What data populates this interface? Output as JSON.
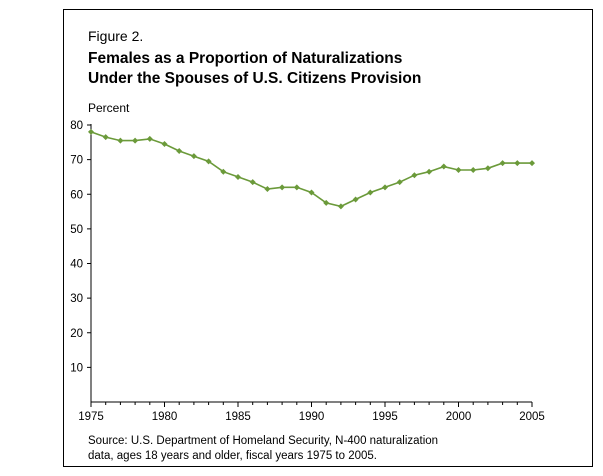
{
  "figure_label": "Figure 2.",
  "title_line1": "Females as a Proportion of Naturalizations",
  "title_line2": "Under the Spouses of U.S. Citizens Provision",
  "y_unit": "Percent",
  "source_line1": "Source: U.S. Department of Homeland Security, N-400 naturalization",
  "source_line2": "data, ages 18 years and older, fiscal years 1975 to 2005.",
  "chart_data": {
    "type": "line",
    "title": "Females as a Proportion of Naturalizations Under the Spouses of U.S. Citizens Provision",
    "xlabel": "",
    "ylabel": "Percent",
    "xlim": [
      1975,
      2005
    ],
    "ylim": [
      0,
      80
    ],
    "x_ticks": [
      "1975",
      "1980",
      "1985",
      "1990",
      "1995",
      "2000",
      "2005"
    ],
    "y_ticks": [
      "10",
      "20",
      "30",
      "40",
      "50",
      "60",
      "70",
      "80"
    ],
    "grid": false,
    "legend": "none",
    "line_color": "#6b9a3a",
    "series": [
      {
        "x": [
          1975,
          1976,
          1977,
          1978,
          1979,
          1980,
          1981,
          1982,
          1983,
          1984,
          1985,
          1986,
          1987,
          1988,
          1989,
          1990,
          1991,
          1992,
          1993,
          1994,
          1995,
          1996,
          1997,
          1998,
          1999,
          2000,
          2001,
          2002,
          2003,
          2004,
          2005
        ],
        "values": [
          78,
          76.5,
          75.5,
          75.5,
          76,
          74.5,
          72.5,
          71,
          69.5,
          66.5,
          65,
          63.5,
          61.5,
          62,
          62,
          60.5,
          57.5,
          56.5,
          58.5,
          60.5,
          62,
          63.5,
          65.5,
          66.5,
          68,
          67,
          67,
          67.5,
          69,
          69,
          69
        ]
      }
    ]
  }
}
